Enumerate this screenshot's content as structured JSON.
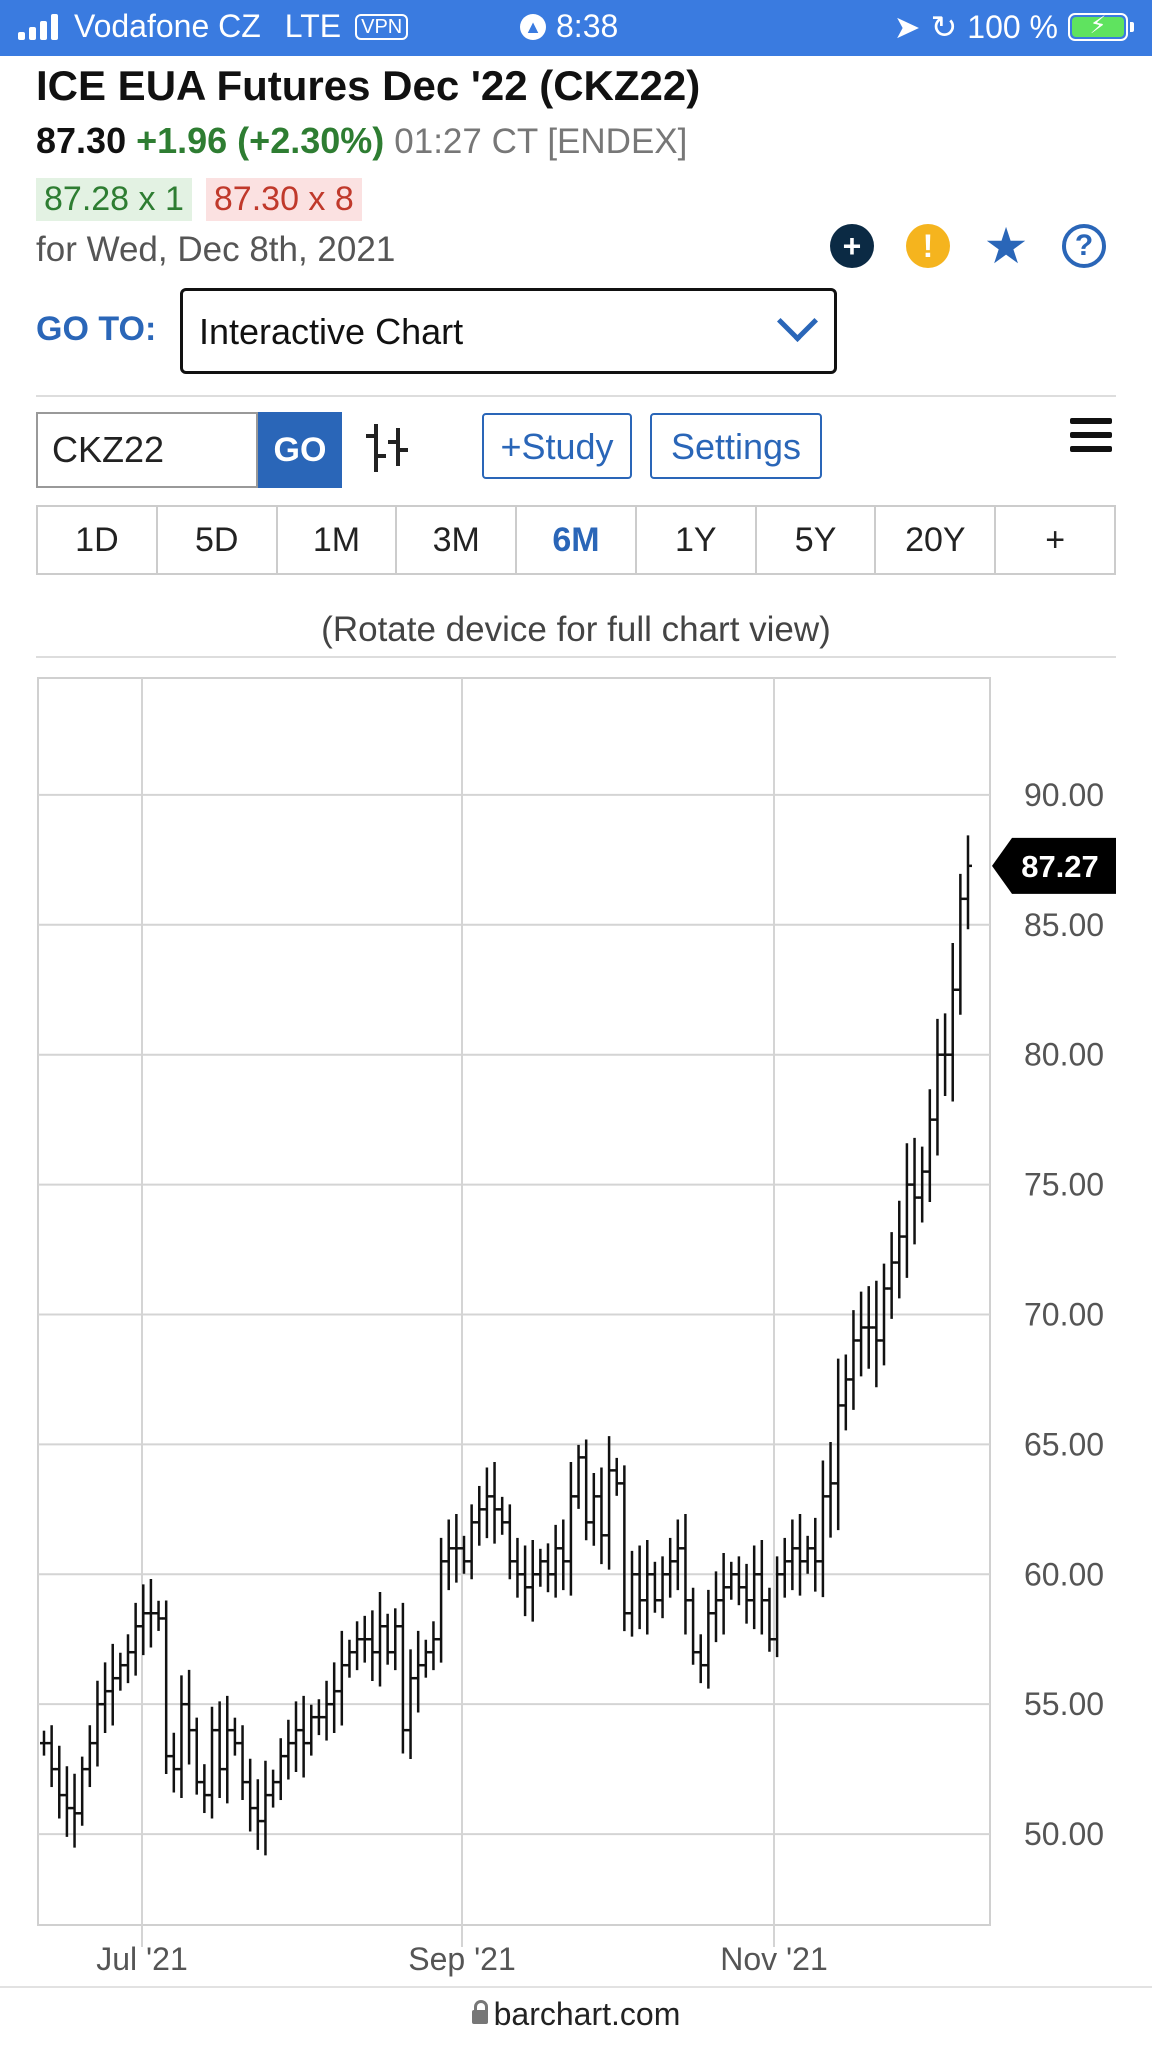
{
  "status_bar": {
    "carrier": "Vodafone CZ",
    "network": "LTE",
    "vpn": "VPN",
    "time": "8:38",
    "battery": "100 %"
  },
  "quote": {
    "title": "ICE EUA Futures Dec '22 (CKZ22)",
    "price": "87.30",
    "change": "+1.96 (+2.30%)",
    "time_info": "01:27 CT [ENDEX]",
    "bid": "87.28 x 1",
    "ask": "87.30 x 8",
    "date": "for Wed, Dec 8th, 2021"
  },
  "icons": [
    "plus-icon",
    "warning-icon",
    "star-icon",
    "help-icon"
  ],
  "goto": {
    "label": "GO TO:",
    "selected": "Interactive Chart"
  },
  "toolbar": {
    "symbol": "CKZ22",
    "go": "GO",
    "study": "+Study",
    "settings": "Settings"
  },
  "ranges": [
    "1D",
    "5D",
    "1M",
    "3M",
    "6M",
    "1Y",
    "5Y",
    "20Y",
    "+"
  ],
  "active_range": "6M",
  "rotate_note": "(Rotate device for full chart view)",
  "chart_data": {
    "type": "ohlc-bar",
    "ylim": [
      46.5,
      94.5
    ],
    "y_ticks": [
      "90.00",
      "85.00",
      "80.00",
      "75.00",
      "70.00",
      "65.00",
      "60.00",
      "55.00",
      "50.00"
    ],
    "x_ticks": [
      "Jul '21",
      "Sep '21",
      "Nov '21"
    ],
    "last_price_label": "87.27",
    "closes": [
      53.5,
      52.5,
      51.5,
      51.0,
      50.8,
      52.5,
      53.5,
      55.0,
      55.5,
      56.0,
      56.5,
      57.0,
      58.0,
      58.5,
      58.5,
      58.3,
      53.0,
      52.5,
      55.0,
      54.0,
      52.0,
      51.5,
      54.0,
      52.5,
      54.0,
      53.5,
      52.0,
      51.0,
      50.5,
      51.5,
      52.0,
      53.0,
      53.5,
      54.0,
      53.5,
      54.5,
      54.5,
      55.0,
      55.5,
      56.5,
      57.0,
      57.5,
      57.5,
      57.0,
      58.0,
      57.0,
      58.0,
      54.0,
      56.0,
      56.5,
      57.0,
      57.5,
      60.5,
      61.0,
      61.0,
      60.5,
      62.0,
      62.5,
      63.0,
      62.5,
      62.0,
      60.5,
      60.0,
      59.5,
      60.0,
      60.5,
      60.0,
      61.0,
      60.5,
      63.0,
      64.5,
      62.0,
      63.0,
      61.5,
      64.0,
      63.5,
      58.5,
      60.0,
      59.0,
      60.0,
      59.0,
      60.0,
      60.5,
      61.0,
      59.0,
      57.0,
      56.5,
      58.5,
      59.0,
      59.5,
      60.0,
      59.5,
      59.0,
      60.0,
      59.0,
      57.5,
      60.0,
      60.5,
      61.0,
      60.5,
      61.0,
      60.5,
      63.0,
      63.5,
      66.5,
      67.5,
      69.0,
      69.5,
      69.5,
      69.0,
      71.0,
      72.0,
      73.0,
      75.0,
      74.5,
      75.5,
      77.5,
      80.0,
      80.0,
      82.5,
      86.0,
      87.27
    ]
  },
  "footer": "barchart.com"
}
